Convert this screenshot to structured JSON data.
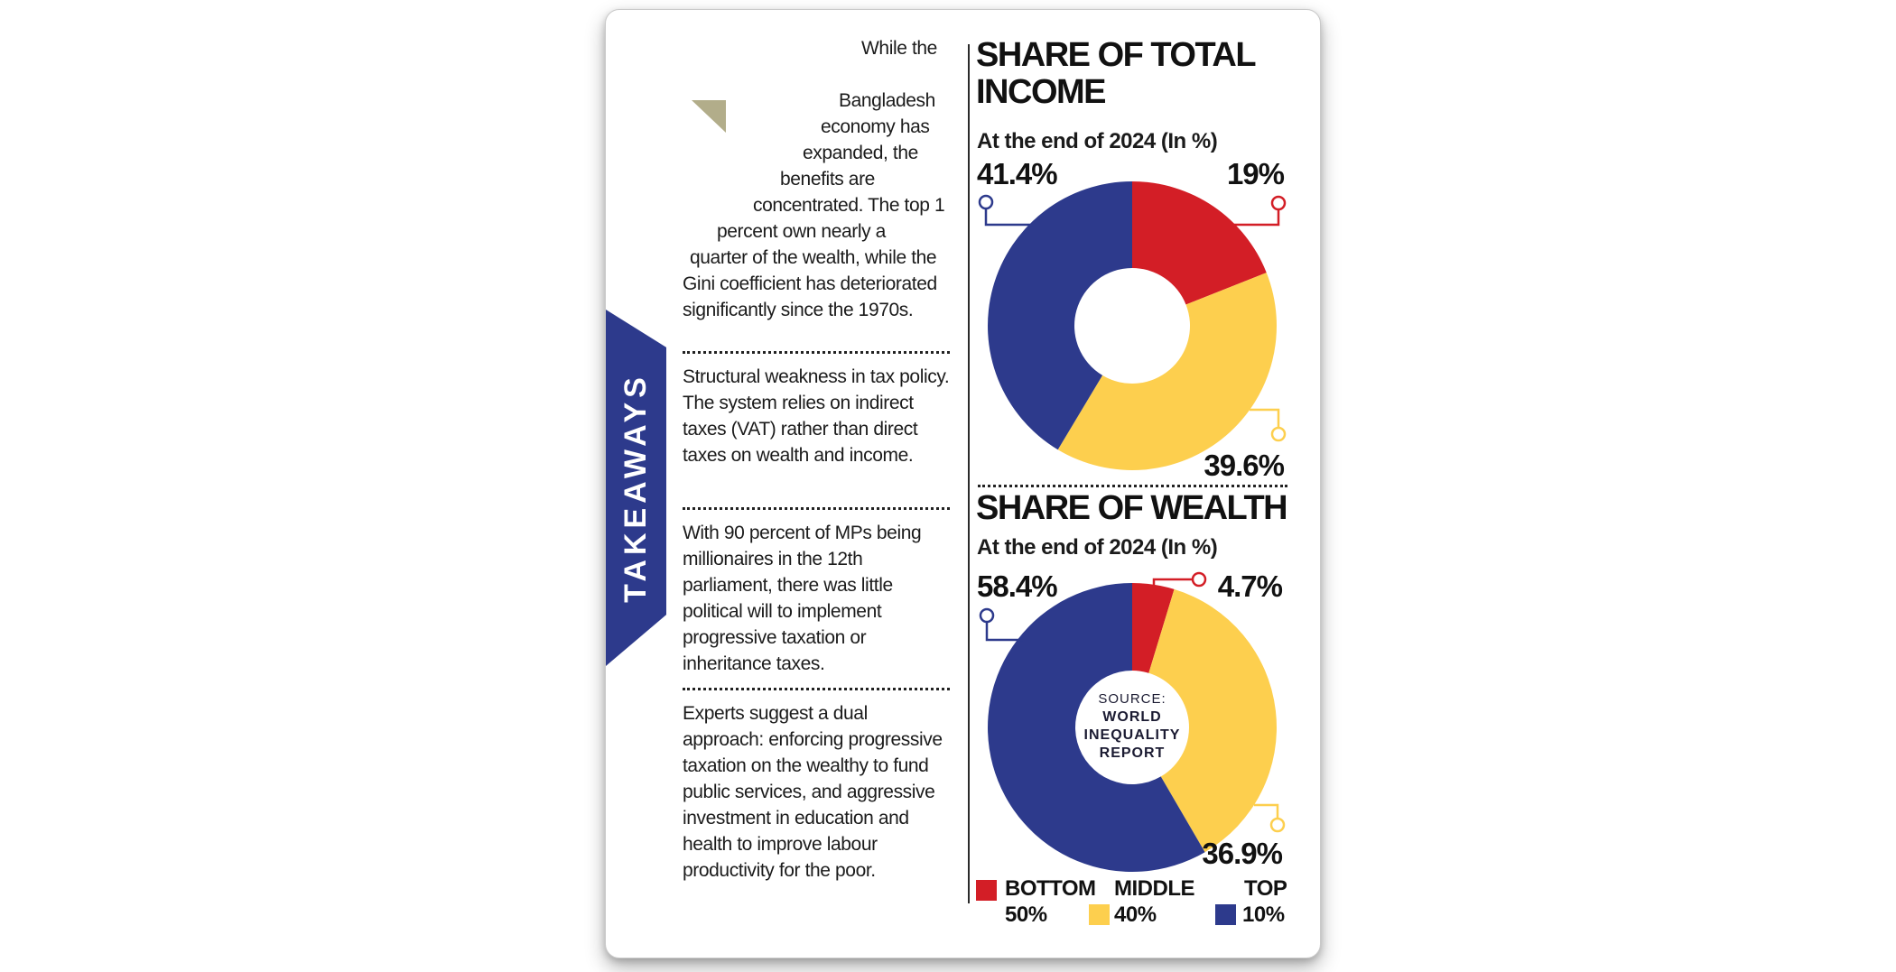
{
  "colors": {
    "navy": "#2d3a8c",
    "red": "#d31e26",
    "yellow": "#fdcf4e",
    "khaki_triangle": "#b2ad8a",
    "text": "#1b1b1b",
    "banner_text": "#ffffff"
  },
  "takeaways": {
    "banner": "TAKEAWAYS",
    "paragraphs": [
      "While the Bangladesh economy has expanded, the benefits are concentrated. The top 1 percent own nearly a quarter of the wealth, while the Gini coefficient has deteriorated significantly since the 1970s.",
      "Structural weakness in tax policy. The system relies on indirect taxes (VAT) rather than direct taxes on wealth and income.",
      "With 90 percent of MPs being millionaires in the 12th parliament, there was little political will to implement progressive taxation or inheritance taxes.",
      "Experts suggest a dual approach: enforcing progressive taxation on the wealthy to fund public services, and aggressive investment in education and health to improve labour productivity for the poor."
    ]
  },
  "chart_data": [
    {
      "type": "pie",
      "variant": "donut",
      "title": "SHARE OF TOTAL INCOME",
      "subtitle": "At the end of 2024 (In %)",
      "categories": [
        "BOTTOM 50%",
        "MIDDLE 40%",
        "TOP 10%"
      ],
      "values": [
        19,
        39.6,
        41.4
      ],
      "slice_colors": [
        "#d31e26",
        "#fdcf4e",
        "#2d3a8c"
      ],
      "start_angle_deg": 0,
      "direction": "clockwise",
      "labels": {
        "top_left": "41.4%",
        "top_right": "19%",
        "bottom_right": "39.6%"
      }
    },
    {
      "type": "pie",
      "variant": "donut",
      "title": "SHARE OF WEALTH",
      "subtitle": "At the end of 2024 (In %)",
      "categories": [
        "BOTTOM 50%",
        "MIDDLE 40%",
        "TOP 10%"
      ],
      "values": [
        4.7,
        36.9,
        58.4
      ],
      "slice_colors": [
        "#d31e26",
        "#fdcf4e",
        "#2d3a8c"
      ],
      "start_angle_deg": 0,
      "direction": "clockwise",
      "labels": {
        "top_left": "58.4%",
        "top_right": "4.7%",
        "bottom_right": "36.9%"
      }
    }
  ],
  "source": {
    "prefix": "SOURCE:",
    "lines": [
      "WORLD",
      "INEQUALITY",
      "REPORT"
    ]
  },
  "legend": {
    "items": [
      {
        "name": "BOTTOM",
        "pct": "50%",
        "color": "#d31e26"
      },
      {
        "name": "MIDDLE",
        "pct": "40%",
        "color": "#fdcf4e"
      },
      {
        "name": "TOP",
        "pct": "10%",
        "color": "#2d3a8c"
      }
    ]
  }
}
